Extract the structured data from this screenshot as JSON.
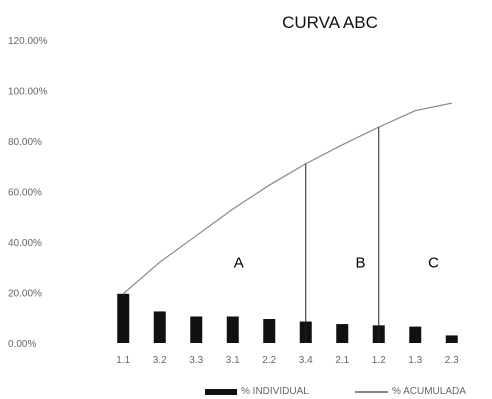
{
  "chart_data": {
    "type": "bar",
    "title": "CURVA ABC",
    "xlabel": "",
    "ylabel": "",
    "categories": [
      "1.1",
      "3.2",
      "3.3",
      "3.1",
      "2.2",
      "3.4",
      "2.1",
      "1.2",
      "1.3",
      "2.3"
    ],
    "ylim": [
      0,
      120
    ],
    "yticks": [
      "0.00%",
      "20.00%",
      "40.00%",
      "60.00%",
      "80.00%",
      "100.00%",
      "120.00%"
    ],
    "ytick_values": [
      0,
      20,
      40,
      60,
      80,
      100,
      120
    ],
    "grid": false,
    "legend_placement": "bottom",
    "series": [
      {
        "name": "% INDIVIDUAL",
        "kind": "bar",
        "color": "#111111",
        "values": [
          19.5,
          12.5,
          10.5,
          10.5,
          9.5,
          8.5,
          7.5,
          7,
          6.5,
          3
        ]
      },
      {
        "name": "% ACUMULADA",
        "kind": "line",
        "color": "#888888",
        "values": [
          19.5,
          32,
          42.5,
          53,
          62.5,
          71,
          78.5,
          85.5,
          92,
          95
        ]
      }
    ],
    "zone_boundaries": [
      {
        "category": "3.4",
        "value": 71
      },
      {
        "category": "1.2",
        "value": 85.5
      }
    ],
    "zones": [
      {
        "label": "A",
        "from": "1.1",
        "to": "3.4"
      },
      {
        "label": "B",
        "from": "2.1",
        "to": "1.2"
      },
      {
        "label": "C",
        "from": "1.3",
        "to": "2.3"
      }
    ]
  }
}
